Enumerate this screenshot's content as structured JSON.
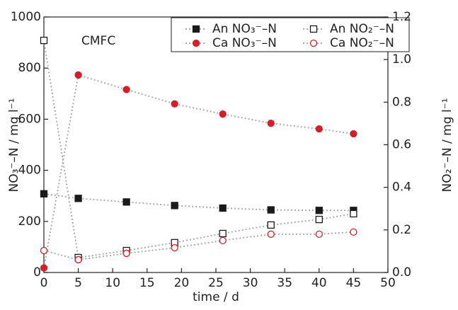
{
  "chart_data": {
    "type": "line",
    "annotation": "CMFC",
    "xlabel": "time / d",
    "ylabel": "NO₃⁻–N / mg l⁻¹",
    "y2label": "NO₂⁻–N / mg l⁻¹",
    "x": [
      0,
      5,
      12,
      19,
      26,
      33,
      40,
      45
    ],
    "series": [
      {
        "name": "An NO₃⁻–N",
        "color": "#1a1a1a",
        "marker": "square",
        "filled": true,
        "axis": "y",
        "values": [
          308,
          290,
          276,
          262,
          252,
          245,
          243,
          243
        ]
      },
      {
        "name": "An NO₂⁻–N",
        "color": "#1a1a1a",
        "marker": "square",
        "filled": false,
        "axis": "y2",
        "values": [
          1.09,
          0.07,
          0.103,
          0.14,
          0.183,
          0.223,
          0.249,
          0.276
        ]
      },
      {
        "name": "Ca NO₃⁻–N",
        "color": "#d0202a",
        "marker": "circle",
        "filled": true,
        "axis": "y",
        "values": [
          18,
          773,
          716,
          660,
          620,
          584,
          562,
          543
        ]
      },
      {
        "name": "Ca NO₂⁻–N",
        "color": "#d0202a",
        "marker": "circle",
        "filled": false,
        "axis": "y2",
        "values": [
          0.103,
          0.06,
          0.09,
          0.116,
          0.15,
          0.18,
          0.18,
          0.19
        ]
      }
    ],
    "line_color": "#aaaaaa",
    "xlim": [
      0,
      50
    ],
    "xticks": [
      0,
      5,
      10,
      15,
      20,
      25,
      30,
      35,
      40,
      45,
      50
    ],
    "ylim": [
      0,
      1000
    ],
    "yticks": [
      0,
      200,
      400,
      600,
      800,
      1000
    ],
    "y2lim": [
      0,
      1.2
    ],
    "y2ticks": [
      {
        "value": 0,
        "label": "0.0"
      },
      0.2,
      0.4,
      0.6,
      0.8,
      {
        "value": 1,
        "label": "1.0"
      },
      1.2
    ]
  }
}
